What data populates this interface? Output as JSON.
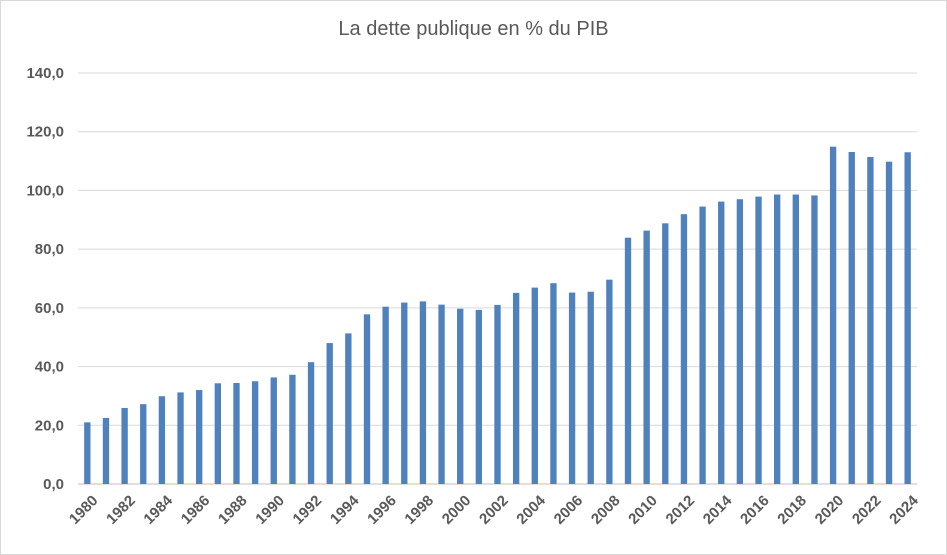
{
  "chart_data": {
    "type": "bar",
    "title": "La dette publique en % du PIB",
    "xlabel": "",
    "ylabel": "",
    "ylim": [
      0,
      140
    ],
    "yticks": [
      "0,0",
      "20,0",
      "40,0",
      "60,0",
      "80,0",
      "100,0",
      "120,0",
      "140,0"
    ],
    "ytick_values": [
      0,
      20,
      40,
      60,
      80,
      100,
      120,
      140
    ],
    "grid": true,
    "legend": "none",
    "bar_color": "#4f81bd",
    "categories": [
      "1980",
      "1981",
      "1982",
      "1983",
      "1984",
      "1985",
      "1986",
      "1987",
      "1988",
      "1989",
      "1990",
      "1991",
      "1992",
      "1993",
      "1994",
      "1995",
      "1996",
      "1997",
      "1998",
      "1999",
      "2000",
      "2001",
      "2002",
      "2003",
      "2004",
      "2005",
      "2006",
      "2007",
      "2008",
      "2009",
      "2010",
      "2011",
      "2012",
      "2013",
      "2014",
      "2015",
      "2016",
      "2017",
      "2018",
      "2019",
      "2020",
      "2021",
      "2022",
      "2023",
      "2024"
    ],
    "tick_labels": [
      "1980",
      "1982",
      "1984",
      "1986",
      "1988",
      "1990",
      "1992",
      "1994",
      "1996",
      "1998",
      "2000",
      "2002",
      "2004",
      "2006",
      "2008",
      "2010",
      "2012",
      "2014",
      "2016",
      "2018",
      "2020",
      "2022",
      "2024"
    ],
    "values": [
      21.0,
      22.5,
      25.9,
      27.2,
      29.9,
      31.2,
      32.0,
      34.3,
      34.4,
      35.0,
      36.3,
      37.2,
      41.5,
      48.0,
      51.3,
      57.8,
      60.4,
      61.8,
      62.2,
      61.1,
      59.7,
      59.3,
      61.0,
      65.1,
      66.9,
      68.4,
      65.2,
      65.5,
      69.6,
      83.9,
      86.3,
      88.8,
      91.9,
      94.5,
      96.2,
      97.0,
      97.9,
      98.6,
      98.6,
      98.3,
      114.9,
      113.1,
      111.4,
      109.8,
      113.0
    ]
  }
}
